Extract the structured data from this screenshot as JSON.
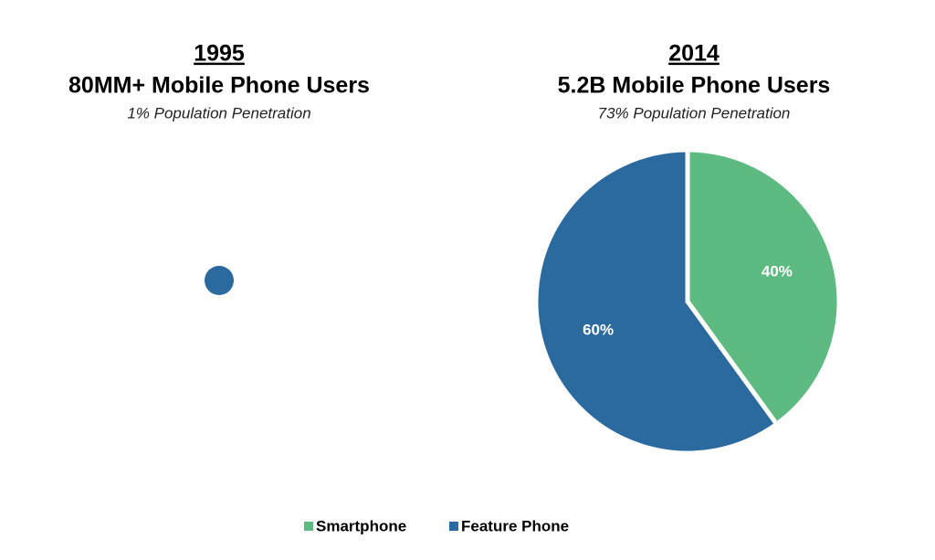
{
  "chart_data": [
    {
      "type": "pie",
      "title": "1995",
      "subtitle": "80MM+ Mobile Phone Users",
      "note": "1% Population Penetration",
      "values": [
        100
      ],
      "colors": [
        "#2b6a9e"
      ]
    },
    {
      "type": "pie",
      "title": "2014",
      "subtitle": "5.2B Mobile Phone Users",
      "note": "73% Population Penetration",
      "categories": [
        "Smartphone",
        "Feature Phone"
      ],
      "values": [
        40,
        60
      ],
      "value_labels": [
        "40%",
        "60%"
      ],
      "colors": [
        "#5dbb82",
        "#2b6a9e"
      ]
    }
  ]
}
